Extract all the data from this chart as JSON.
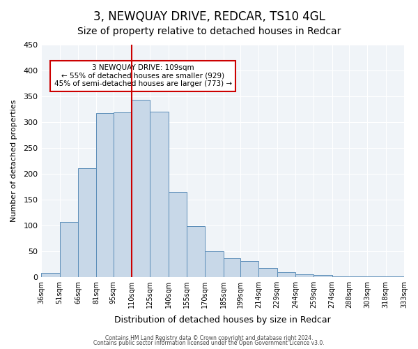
{
  "title": "3, NEWQUAY DRIVE, REDCAR, TS10 4GL",
  "subtitle": "Size of property relative to detached houses in Redcar",
  "xlabel": "Distribution of detached houses by size in Redcar",
  "ylabel": "Number of detached properties",
  "bin_labels": [
    "36sqm",
    "51sqm",
    "66sqm",
    "81sqm",
    "95sqm",
    "110sqm",
    "125sqm",
    "140sqm",
    "155sqm",
    "170sqm",
    "185sqm",
    "199sqm",
    "214sqm",
    "229sqm",
    "244sqm",
    "259sqm",
    "274sqm",
    "288sqm",
    "303sqm",
    "318sqm",
    "333sqm"
  ],
  "bin_edges": [
    36,
    51,
    66,
    81,
    95,
    110,
    125,
    140,
    155,
    170,
    185,
    199,
    214,
    229,
    244,
    259,
    274,
    288,
    303,
    318,
    333
  ],
  "bar_heights": [
    7,
    106,
    210,
    317,
    319,
    343,
    320,
    165,
    98,
    50,
    36,
    30,
    17,
    9,
    5,
    4,
    1,
    1,
    1,
    1
  ],
  "bar_color": "#c8d8e8",
  "bar_edge_color": "#5b8db8",
  "marker_x": 110,
  "marker_line_color": "#cc0000",
  "annotation_title": "3 NEWQUAY DRIVE: 109sqm",
  "annotation_line1": "← 55% of detached houses are smaller (929)",
  "annotation_line2": "45% of semi-detached houses are larger (773) →",
  "annotation_box_edge_color": "#cc0000",
  "ylim": [
    0,
    450
  ],
  "xlim": [
    36,
    333
  ],
  "footer1": "Contains HM Land Registry data © Crown copyright and database right 2024.",
  "footer2": "Contains public sector information licensed under the Open Government Licence v3.0.",
  "bg_color": "#f0f4f8",
  "title_fontsize": 12,
  "subtitle_fontsize": 10
}
